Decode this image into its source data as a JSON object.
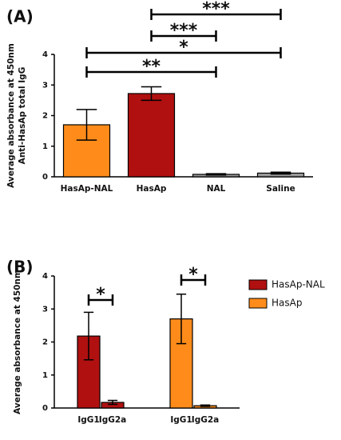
{
  "chart_data": [
    {
      "type": "bar",
      "panel": "(A)",
      "ylabel": [
        "Average absorbance at 450nm",
        "Anti-HasAp total IgG"
      ],
      "categories": [
        "HasAp-NAL",
        "HasAp",
        "NAL",
        "Saline"
      ],
      "values": [
        1.7,
        2.72,
        0.08,
        0.12
      ],
      "errors": [
        0.5,
        0.22,
        0.02,
        0.03
      ],
      "colors": [
        "#ff8c1a",
        "#b01010",
        "#999999",
        "#999999"
      ],
      "ylim": [
        0,
        4
      ],
      "yticks": [
        0,
        1,
        2,
        3,
        4
      ],
      "annotations": [
        {
          "label": "***",
          "from": "HasAp",
          "to": "Saline"
        },
        {
          "label": "***",
          "from": "HasAp",
          "to": "NAL"
        },
        {
          "label": "*",
          "from": "HasAp-NAL",
          "to": "Saline"
        },
        {
          "label": "**",
          "from": "HasAp-NAL",
          "to": "NAL"
        }
      ]
    },
    {
      "type": "grouped_bar",
      "panel": "(B)",
      "ylabel": [
        "Average absorbance at 450nm"
      ],
      "categories": [
        "IgG1",
        "IgG2a"
      ],
      "series": [
        {
          "name": "HasAp-NAL",
          "color": "#b01010",
          "values": [
            2.18,
            0.17
          ],
          "errors": [
            0.72,
            0.06
          ]
        },
        {
          "name": "HasAp",
          "color": "#ff8c1a",
          "values": [
            2.7,
            0.07
          ],
          "errors": [
            0.75,
            0.02
          ]
        }
      ],
      "ylim": [
        0,
        4
      ],
      "yticks": [
        0,
        1,
        2,
        3,
        4
      ],
      "legend": "right",
      "annotations": [
        {
          "label": "*",
          "from": "IgG1",
          "to": "IgG2a",
          "group": "HasAp-NAL"
        },
        {
          "label": "*",
          "from": "IgG1",
          "to": "IgG2a",
          "group": "HasAp"
        }
      ]
    }
  ]
}
